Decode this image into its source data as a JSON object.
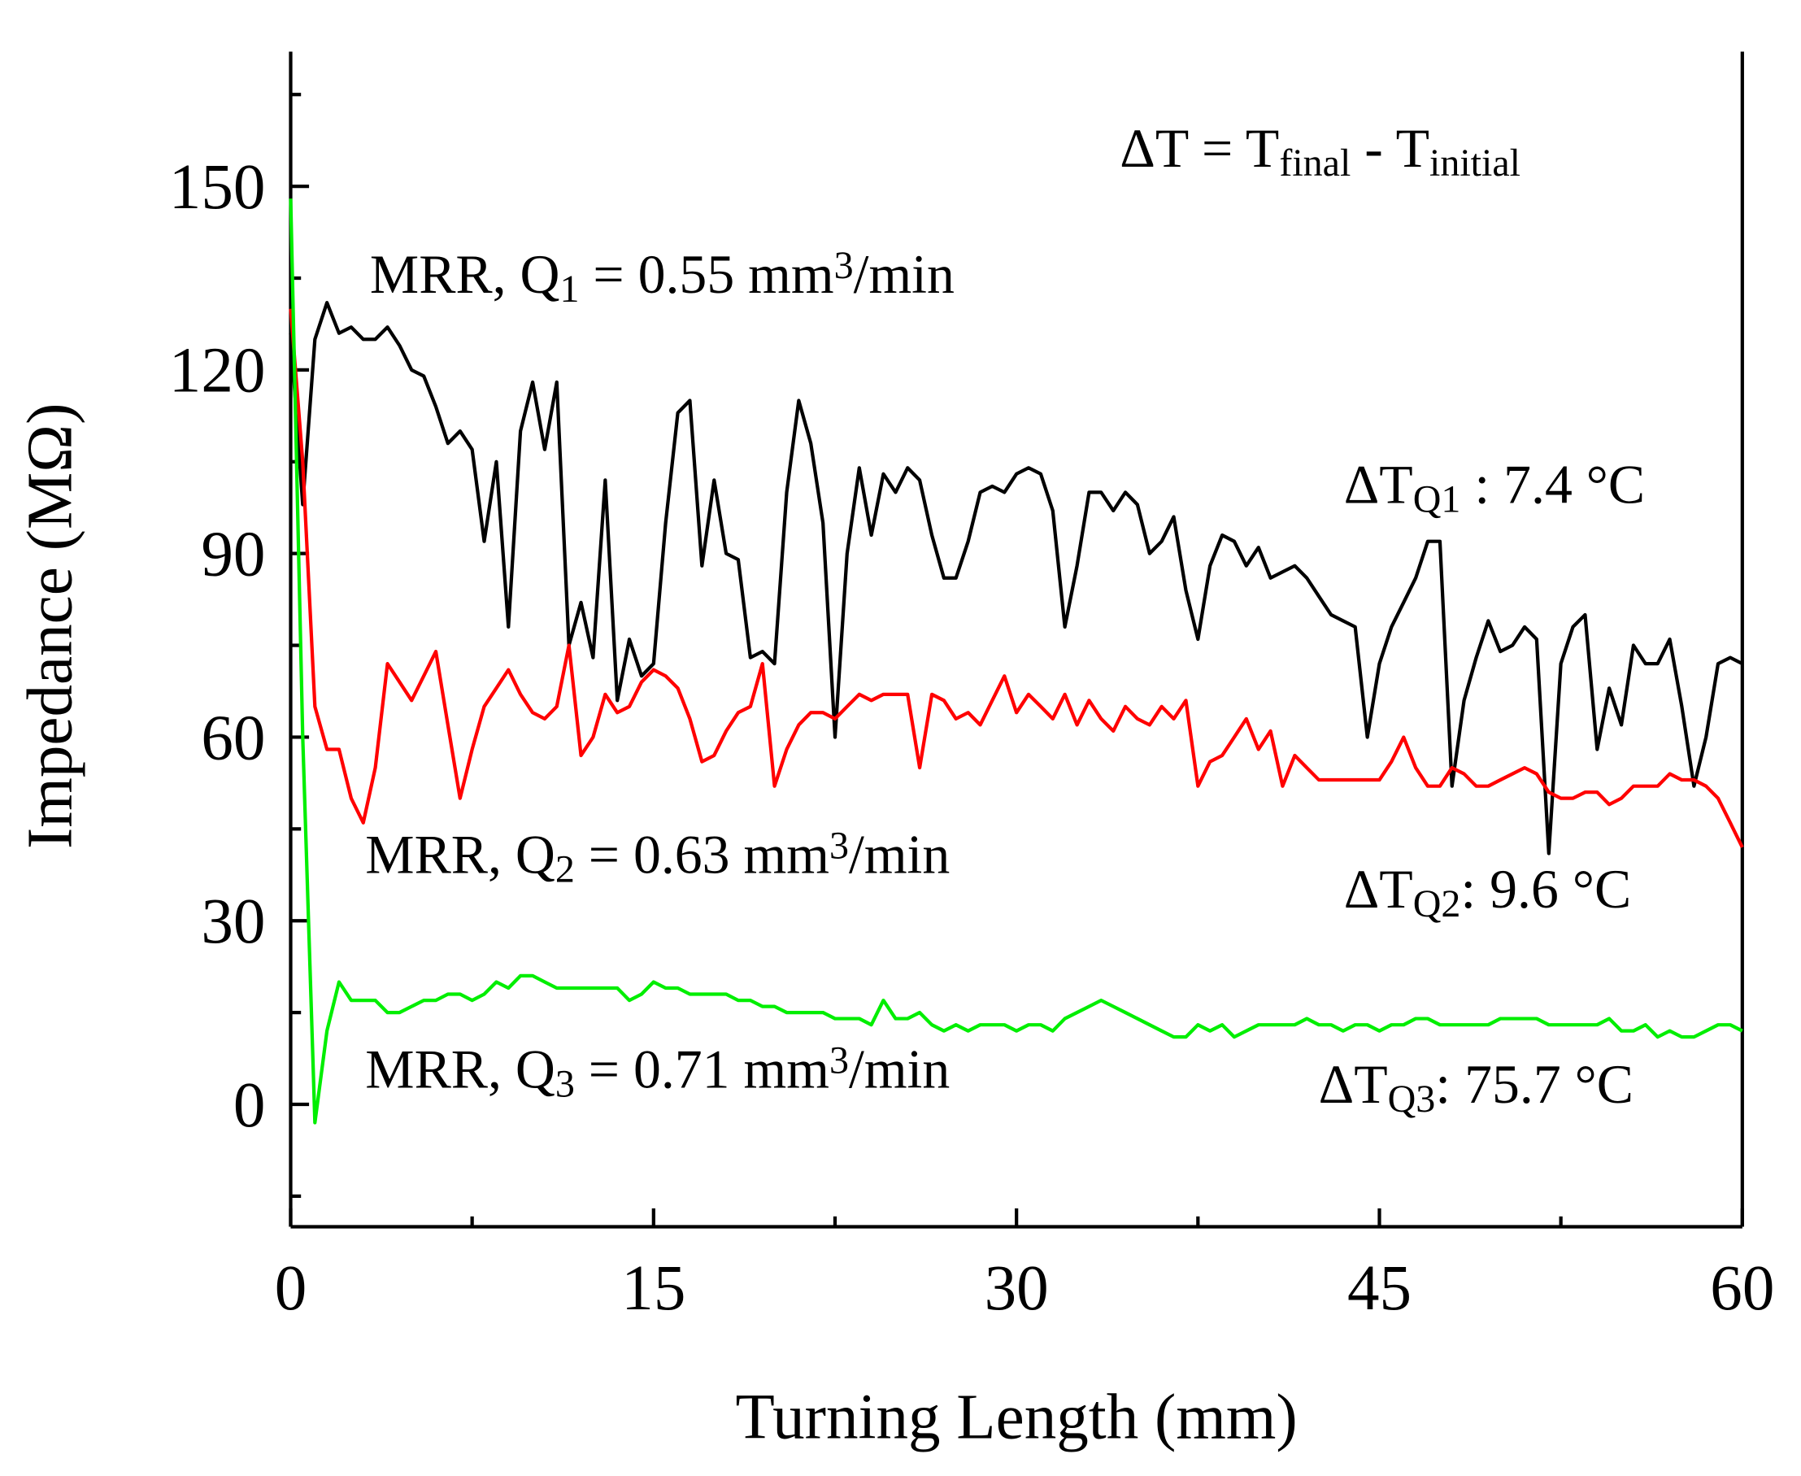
{
  "chart_data": {
    "type": "line",
    "xlabel": "Turning Length (mm)",
    "ylabel": "Impedance (MΩ)",
    "xlim": [
      0,
      60
    ],
    "ylim": [
      -20,
      172
    ],
    "xticks": [
      0,
      15,
      30,
      45,
      60
    ],
    "yticks": [
      0,
      30,
      60,
      90,
      120,
      150
    ],
    "x": [
      0,
      0.5,
      1,
      1.5,
      2,
      2.5,
      3,
      3.5,
      4,
      4.5,
      5,
      5.5,
      6,
      6.5,
      7,
      7.5,
      8,
      8.5,
      9,
      9.5,
      10,
      10.5,
      11,
      11.5,
      12,
      12.5,
      13,
      13.5,
      14,
      14.5,
      15,
      15.5,
      16,
      16.5,
      17,
      17.5,
      18,
      18.5,
      19,
      19.5,
      20,
      20.5,
      21,
      21.5,
      22,
      22.5,
      23,
      23.5,
      24,
      24.5,
      25,
      25.5,
      26,
      26.5,
      27,
      27.5,
      28,
      28.5,
      29,
      29.5,
      30,
      30.5,
      31,
      31.5,
      32,
      32.5,
      33,
      33.5,
      34,
      34.5,
      35,
      35.5,
      36,
      36.5,
      37,
      37.5,
      38,
      38.5,
      39,
      39.5,
      40,
      40.5,
      41,
      41.5,
      42,
      42.5,
      43,
      43.5,
      44,
      44.5,
      45,
      45.5,
      46,
      46.5,
      47,
      47.5,
      48,
      48.5,
      49,
      49.5,
      50,
      50.5,
      51,
      51.5,
      52,
      52.5,
      53,
      53.5,
      54,
      54.5,
      55,
      55.5,
      56,
      56.5,
      57,
      57.5,
      58,
      58.5,
      59,
      59.5,
      60
    ],
    "series": [
      {
        "color": "#000000",
        "values": [
          126,
          98,
          125,
          131,
          126,
          127,
          125,
          125,
          127,
          124,
          120,
          119,
          114,
          108,
          110,
          107,
          92,
          105,
          78,
          110,
          118,
          107,
          118,
          75,
          82,
          73,
          102,
          66,
          76,
          70,
          72,
          95,
          113,
          115,
          88,
          102,
          90,
          89,
          73,
          74,
          72,
          100,
          115,
          108,
          95,
          60,
          90,
          104,
          93,
          103,
          100,
          104,
          102,
          93,
          86,
          86,
          92,
          100,
          101,
          100,
          103,
          104,
          103,
          97,
          78,
          88,
          100,
          100,
          97,
          100,
          98,
          90,
          92,
          96,
          84,
          76,
          88,
          93,
          92,
          88,
          91,
          86,
          87,
          88,
          86,
          83,
          80,
          79,
          78,
          60,
          72,
          78,
          82,
          86,
          92,
          92,
          52,
          66,
          73,
          79,
          74,
          75,
          78,
          76,
          41,
          72,
          78,
          80,
          58,
          68,
          62,
          75,
          72,
          72,
          76,
          65,
          52,
          60,
          72,
          73,
          72
        ]
      },
      {
        "color": "#ff0000",
        "values": [
          130,
          105,
          65,
          58,
          58,
          50,
          46,
          55,
          72,
          69,
          66,
          70,
          74,
          62,
          50,
          58,
          65,
          68,
          71,
          67,
          64,
          63,
          65,
          75,
          57,
          60,
          67,
          64,
          65,
          69,
          71,
          70,
          68,
          63,
          56,
          57,
          61,
          64,
          65,
          72,
          52,
          58,
          62,
          64,
          64,
          63,
          65,
          67,
          66,
          67,
          67,
          67,
          55,
          67,
          66,
          63,
          64,
          62,
          66,
          70,
          64,
          67,
          65,
          63,
          67,
          62,
          66,
          63,
          61,
          65,
          63,
          62,
          65,
          63,
          66,
          52,
          56,
          57,
          60,
          63,
          58,
          61,
          52,
          57,
          55,
          53,
          53,
          53,
          53,
          53,
          53,
          56,
          60,
          55,
          52,
          52,
          55,
          54,
          52,
          52,
          53,
          54,
          55,
          54,
          51,
          50,
          50,
          51,
          51,
          49,
          50,
          52,
          52,
          52,
          54,
          53,
          53,
          52,
          50,
          46,
          42
        ]
      },
      {
        "color": "#00ee00",
        "values": [
          148,
          60,
          -3,
          12,
          20,
          17,
          17,
          17,
          15,
          15,
          16,
          17,
          17,
          18,
          18,
          17,
          18,
          20,
          19,
          21,
          21,
          20,
          19,
          19,
          19,
          19,
          19,
          19,
          17,
          18,
          20,
          19,
          19,
          18,
          18,
          18,
          18,
          17,
          17,
          16,
          16,
          15,
          15,
          15,
          15,
          14,
          14,
          14,
          13,
          17,
          14,
          14,
          15,
          13,
          12,
          13,
          12,
          13,
          13,
          13,
          12,
          13,
          13,
          12,
          14,
          15,
          16,
          17,
          16,
          15,
          14,
          13,
          12,
          11,
          11,
          13,
          12,
          13,
          11,
          12,
          13,
          13,
          13,
          13,
          14,
          13,
          13,
          12,
          13,
          13,
          12,
          13,
          13,
          14,
          14,
          13,
          13,
          13,
          13,
          13,
          14,
          14,
          14,
          14,
          13,
          13,
          13,
          13,
          13,
          14,
          12,
          12,
          13,
          11,
          12,
          11,
          11,
          12,
          13,
          13,
          12
        ]
      }
    ],
    "annotations": [
      [
        {
          "text": "ΔT = T"
        },
        {
          "text": "final",
          "shift": "sub"
        },
        {
          "text": " - T"
        },
        {
          "text": "initial",
          "shift": "sub"
        }
      ],
      [
        {
          "text": "MRR, Q"
        },
        {
          "text": "1",
          "shift": "sub"
        },
        {
          "text": " = 0.55 mm"
        },
        {
          "text": "3",
          "shift": "super"
        },
        {
          "text": "/min"
        }
      ],
      [
        {
          "text": "ΔT"
        },
        {
          "text": "Q1",
          "shift": "sub"
        },
        {
          "text": " : 7.4 °C"
        }
      ],
      [
        {
          "text": "MRR, Q"
        },
        {
          "text": "2",
          "shift": "sub"
        },
        {
          "text": " = 0.63 mm"
        },
        {
          "text": "3",
          "shift": "super"
        },
        {
          "text": "/min"
        }
      ],
      [
        {
          "text": "ΔT"
        },
        {
          "text": "Q2",
          "shift": "sub"
        },
        {
          "text": ": 9.6 °C"
        }
      ],
      [
        {
          "text": "MRR, Q"
        },
        {
          "text": "3",
          "shift": "sub"
        },
        {
          "text": " = 0.71 mm"
        },
        {
          "text": "3",
          "shift": "super"
        },
        {
          "text": "/min"
        }
      ],
      [
        {
          "text": "ΔT"
        },
        {
          "text": "Q3",
          "shift": "sub"
        },
        {
          "text": ": 75.7 °C"
        }
      ]
    ]
  }
}
